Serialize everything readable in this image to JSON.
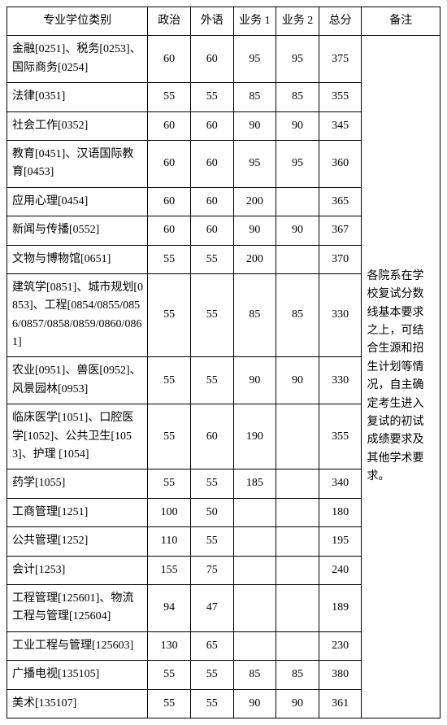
{
  "table": {
    "headers": [
      "专业学位类别",
      "政治",
      "外语",
      "业务 1",
      "业务 2",
      "总分",
      "备注"
    ],
    "remark": "各院系在学校复试分数线基本要求之上，可结合生源和招生计划等情况，自主确定考生进入复试的初试成绩要求及其他学术要求。",
    "rows": [
      {
        "cat": "金融[0251]、税务[0253]、国际商务[0254]",
        "p": "60",
        "f": "60",
        "b1": "95",
        "b2": "95",
        "t": "375"
      },
      {
        "cat": "法律[0351]",
        "p": "55",
        "f": "55",
        "b1": "85",
        "b2": "85",
        "t": "355"
      },
      {
        "cat": "社会工作[0352]",
        "p": "60",
        "f": "60",
        "b1": "90",
        "b2": "90",
        "t": "345"
      },
      {
        "cat": "教育[0451]、汉语国际教育[0453]",
        "p": "60",
        "f": "60",
        "b1": "95",
        "b2": "95",
        "t": "360"
      },
      {
        "cat": "应用心理[0454]",
        "p": "60",
        "f": "60",
        "b1": "200",
        "b2": "",
        "t": "365"
      },
      {
        "cat": "新闻与传播[0552]",
        "p": "60",
        "f": "60",
        "b1": "90",
        "b2": "90",
        "t": "367"
      },
      {
        "cat": "文物与博物馆[0651]",
        "p": "55",
        "f": "55",
        "b1": "200",
        "b2": "",
        "t": "370"
      },
      {
        "cat": "建筑学[0851]、城市规划[0853]、工程[0854/0855/0856/0857/0858/0859/0860/0861]",
        "p": "55",
        "f": "55",
        "b1": "85",
        "b2": "85",
        "t": "330"
      },
      {
        "cat": "农业[0951]、兽医[0952]、风景园林[0953]",
        "p": "55",
        "f": "55",
        "b1": "90",
        "b2": "90",
        "t": "330"
      },
      {
        "cat": "临床医学[1051]、口腔医学[1052]、公共卫生[1053]、护理 [1054]",
        "p": "55",
        "f": "60",
        "b1": "190",
        "b2": "",
        "t": "355"
      },
      {
        "cat": "药学[1055]",
        "p": "55",
        "f": "55",
        "b1": "185",
        "b2": "",
        "t": "340"
      },
      {
        "cat": "工商管理[1251]",
        "p": "100",
        "f": "50",
        "b1": "",
        "b2": "",
        "t": "180"
      },
      {
        "cat": "公共管理[1252]",
        "p": "110",
        "f": "55",
        "b1": "",
        "b2": "",
        "t": "195"
      },
      {
        "cat": "会计[1253]",
        "p": "155",
        "f": "75",
        "b1": "",
        "b2": "",
        "t": "240"
      },
      {
        "cat": "工程管理[125601]、物流工程与管理[125604]",
        "p": "94",
        "f": "47",
        "b1": "",
        "b2": "",
        "t": "189"
      },
      {
        "cat": "工业工程与管理[125603]",
        "p": "130",
        "f": "65",
        "b1": "",
        "b2": "",
        "t": "230"
      },
      {
        "cat": "广播电视[135105]",
        "p": "55",
        "f": "55",
        "b1": "85",
        "b2": "85",
        "t": "380"
      },
      {
        "cat": "美术[135107]",
        "p": "55",
        "f": "55",
        "b1": "90",
        "b2": "90",
        "t": "361"
      }
    ]
  }
}
